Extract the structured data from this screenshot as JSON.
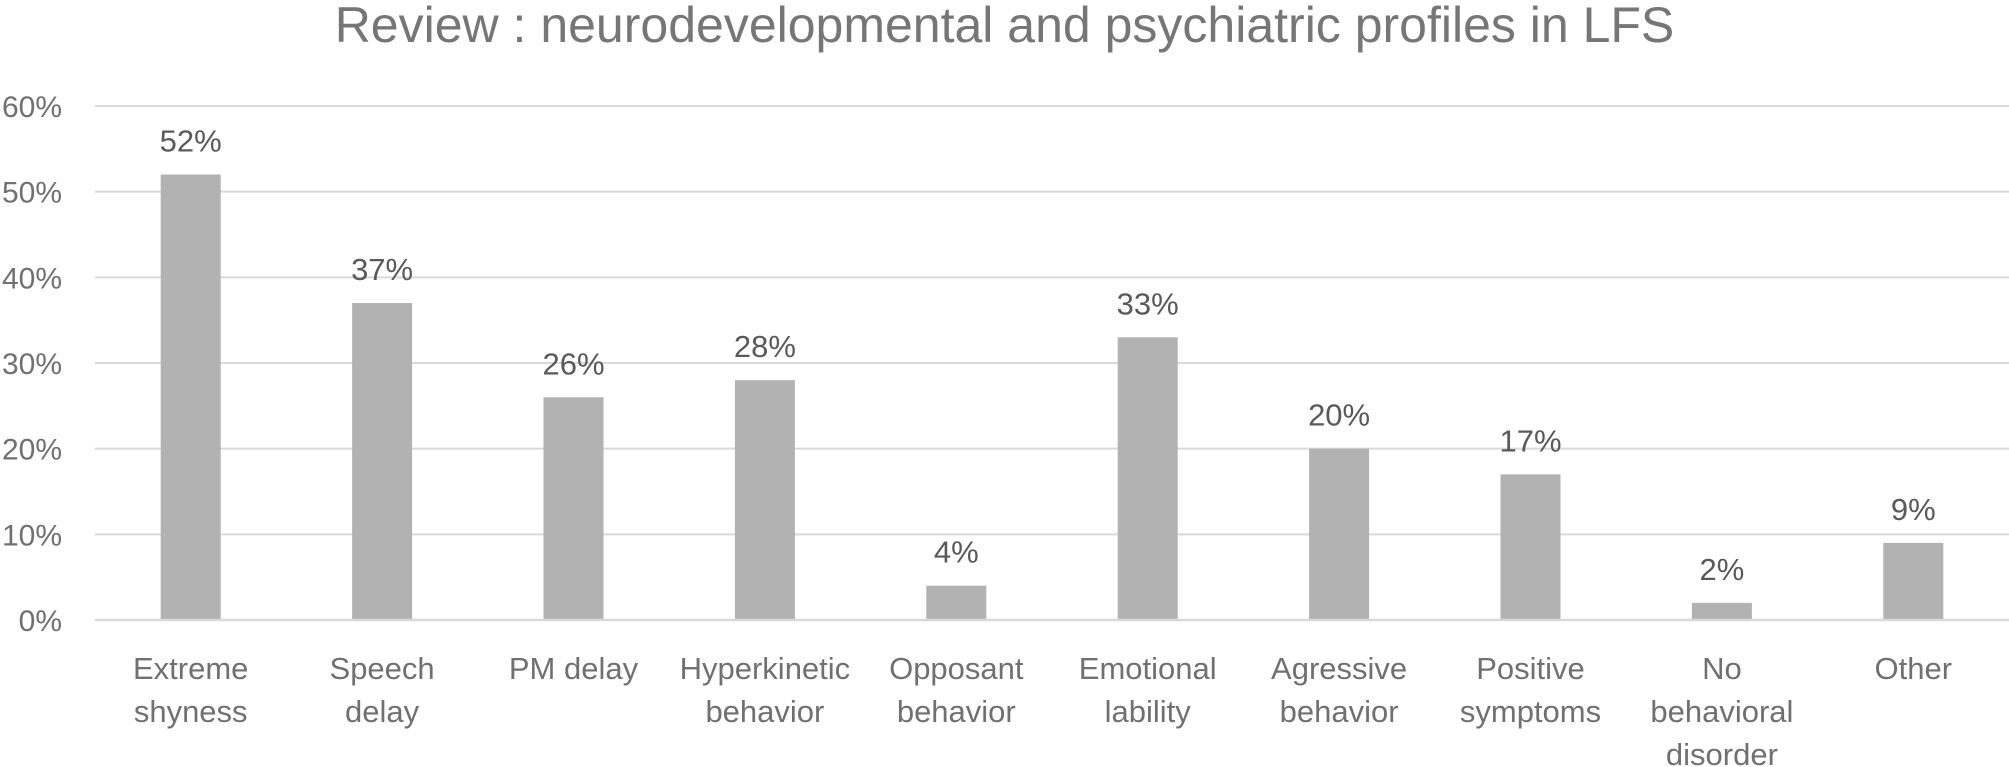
{
  "chart_data": {
    "type": "bar",
    "title": "Review : neurodevelopmental and psychiatric profiles in LFS",
    "xlabel": "",
    "ylabel": "",
    "categories": [
      [
        "Extreme",
        "shyness"
      ],
      [
        "Speech",
        "delay"
      ],
      [
        "PM delay"
      ],
      [
        "Hyperkinetic",
        "behavior"
      ],
      [
        "Opposant",
        "behavior"
      ],
      [
        "Emotional",
        "lability"
      ],
      [
        "Agressive",
        "behavior"
      ],
      [
        "Positive",
        "symptoms"
      ],
      [
        "No",
        "behavioral",
        "disorder"
      ],
      [
        "Other"
      ]
    ],
    "values": [
      52,
      37,
      26,
      28,
      4,
      33,
      20,
      17,
      2,
      9
    ],
    "data_labels": [
      "52%",
      "37%",
      "26%",
      "28%",
      "4%",
      "33%",
      "20%",
      "17%",
      "2%",
      "9%"
    ],
    "ylim": [
      0,
      60
    ],
    "yticks": [
      0,
      10,
      20,
      30,
      40,
      50,
      60
    ],
    "ytick_labels": [
      "0%",
      "10%",
      "20%",
      "30%",
      "40%",
      "50%",
      "60%"
    ],
    "grid": true,
    "legend": "none",
    "colors": {
      "bar": "#b2b2b2",
      "grid": "#d9d9d9",
      "axis": "#d9d9d9",
      "title": "#767676",
      "text": "#707070",
      "data_label": "#595959"
    }
  }
}
